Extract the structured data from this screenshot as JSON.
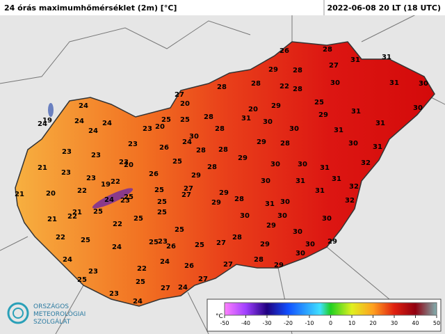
{
  "header": {
    "title": "24 órás maximumhőmérséklet (2m) [°C]",
    "time": "2022-06-08 20 LT (18 UTC)"
  },
  "stations": [
    26,
    28,
    31,
    31,
    27,
    29,
    28,
    28,
    28,
    22,
    28,
    30,
    31,
    30,
    27,
    20,
    29,
    20,
    25,
    31,
    30,
    25,
    28,
    31,
    30,
    29,
    31,
    28,
    30,
    31,
    30,
    24,
    28,
    28,
    29,
    28,
    30,
    31,
    29,
    30,
    30,
    31,
    32,
    28,
    29,
    30,
    31,
    31,
    32,
    31,
    27,
    27,
    29,
    28,
    29,
    31,
    30,
    32,
    30,
    30,
    30,
    29,
    30,
    28,
    27,
    29,
    30,
    29,
    30,
    28,
    29,
    27,
    27,
    24,
    24,
    19,
    24,
    24,
    24,
    24,
    23,
    20,
    25,
    23,
    23,
    26,
    21,
    23,
    23,
    20,
    23,
    23,
    19,
    22,
    26,
    25,
    21,
    20,
    22,
    24,
    23,
    25,
    25,
    21,
    25,
    25,
    21,
    22,
    22,
    25,
    25,
    22,
    25,
    23,
    25,
    24,
    25,
    26,
    25,
    24,
    24,
    26,
    23,
    22,
    25,
    25,
    27,
    23,
    24
  ],
  "legend": {
    "unit": "°C",
    "ticks": [
      -50,
      -40,
      -30,
      -20,
      -10,
      0,
      10,
      20,
      30,
      40,
      50
    ]
  },
  "logo": {
    "lines": [
      "ORSZÁGOS",
      "METEOROLÓGIAI",
      "SZOLGÁLAT"
    ]
  }
}
